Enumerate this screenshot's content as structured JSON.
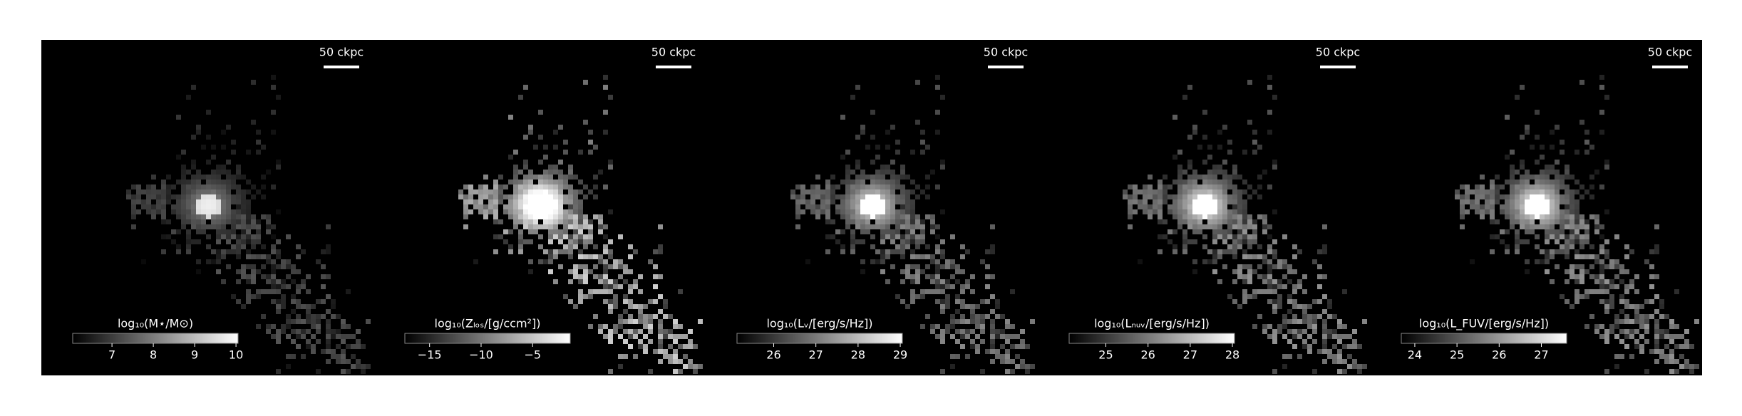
{
  "chart_data": [
    {
      "type": "image",
      "scale_bar": "50 ckpc",
      "colorbar_label": "log₁₀(M⋆/M⊙)",
      "clim": [
        6.05,
        10.05
      ],
      "cticks": [
        7,
        8,
        9,
        10
      ]
    },
    {
      "type": "image",
      "scale_bar": "50 ckpc",
      "colorbar_label": "log₁₀(Zₗₒₛ/[g/ccm²])",
      "clim": [
        -17.4,
        -1.35
      ],
      "cticks": [
        {
          "value": -15,
          "label": "−15"
        },
        {
          "value": -10,
          "label": "−10"
        },
        {
          "value": -5,
          "label": "−5"
        }
      ]
    },
    {
      "type": "image",
      "scale_bar": "50 ckpc",
      "colorbar_label": "log₁₀(Lᵥ/[erg/s/Hz])",
      "clim": [
        25.13,
        29.05
      ],
      "cticks": [
        26,
        27,
        28,
        29
      ]
    },
    {
      "type": "image",
      "scale_bar": "50 ckpc",
      "colorbar_label": "log₁₀(Lₙᵤᵥ/[erg/s/Hz])",
      "clim": [
        24.13,
        28.05
      ],
      "cticks": [
        25,
        26,
        27,
        28
      ]
    },
    {
      "type": "image",
      "scale_bar": "50 ckpc",
      "colorbar_label": "log₁₀(L_FUV/[erg/s/Hz])",
      "clim": [
        23.68,
        27.6
      ],
      "cticks": [
        24,
        25,
        26,
        27
      ]
    }
  ]
}
